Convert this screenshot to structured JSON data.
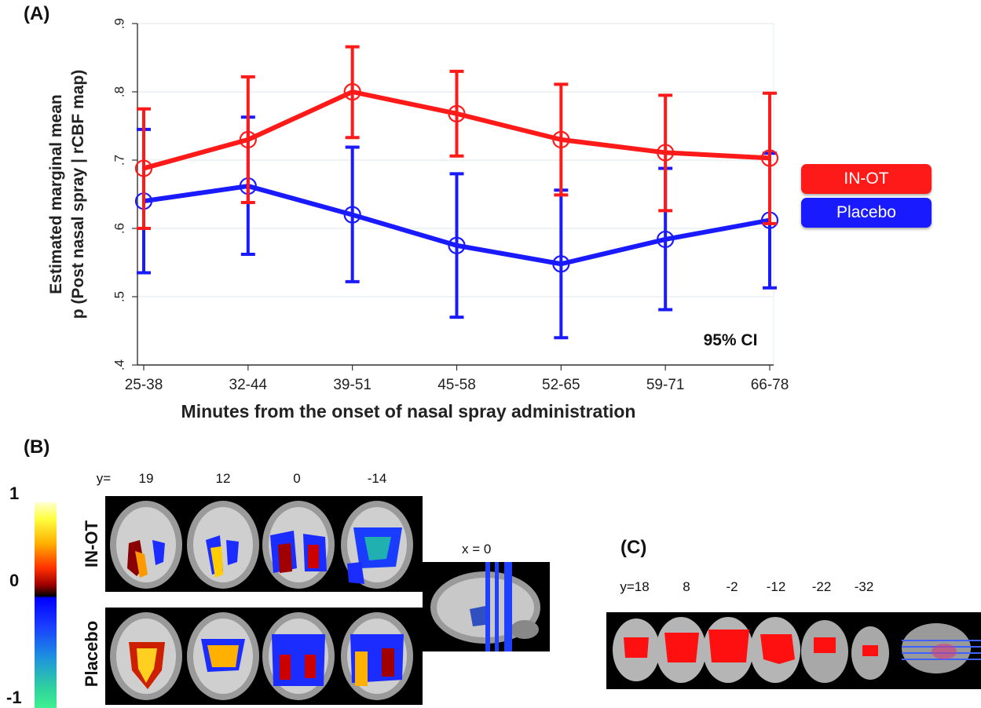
{
  "panel_a": {
    "label": "(A)",
    "ci_note": "95% CI",
    "legend": [
      {
        "label": "IN-OT",
        "color": "#ff1a1a"
      },
      {
        "label": "Placebo",
        "color": "#1a1aff"
      }
    ]
  },
  "panel_b": {
    "label": "(B)",
    "y_prefix": "y=",
    "slices": [
      "19",
      "12",
      "0",
      "-14"
    ],
    "rows": [
      "IN-OT",
      "Placebo"
    ],
    "sagittal_label": "x = 0",
    "colorbar_ticks": [
      "1",
      "0",
      "-1"
    ]
  },
  "panel_c": {
    "label": "(C)",
    "slices": [
      "y=18",
      "8",
      "-2",
      "-12",
      "-22",
      "-32"
    ]
  },
  "chart_data": {
    "type": "line",
    "title": "",
    "xlabel": "Minutes from the onset of nasal spray administration",
    "ylabel": [
      "Estimated marginal mean",
      "p (Post nasal spray | rCBF map)"
    ],
    "categories": [
      "25-38",
      "32-44",
      "39-51",
      "45-58",
      "52-65",
      "59-71",
      "66-78"
    ],
    "ylim": [
      0.4,
      0.9
    ],
    "yticks": [
      0.4,
      0.5,
      0.6,
      0.7,
      0.8,
      0.9
    ],
    "ytick_labels": [
      ".4",
      ".5",
      ".6",
      ".7",
      ".8",
      ".9"
    ],
    "grid": true,
    "legend_position": "right",
    "series": [
      {
        "name": "IN-OT",
        "color": "#ff1a1a",
        "values": [
          0.688,
          0.73,
          0.8,
          0.768,
          0.73,
          0.711,
          0.703
        ],
        "ci_low": [
          0.6,
          0.638,
          0.733,
          0.706,
          0.649,
          0.626,
          0.607
        ],
        "ci_high": [
          0.775,
          0.822,
          0.866,
          0.83,
          0.811,
          0.795,
          0.798
        ]
      },
      {
        "name": "Placebo",
        "color": "#1a1aff",
        "values": [
          0.64,
          0.662,
          0.62,
          0.575,
          0.548,
          0.584,
          0.612
        ],
        "ci_low": [
          0.535,
          0.562,
          0.522,
          0.47,
          0.44,
          0.481,
          0.513
        ],
        "ci_high": [
          0.745,
          0.763,
          0.719,
          0.68,
          0.656,
          0.688,
          0.71
        ]
      }
    ]
  }
}
